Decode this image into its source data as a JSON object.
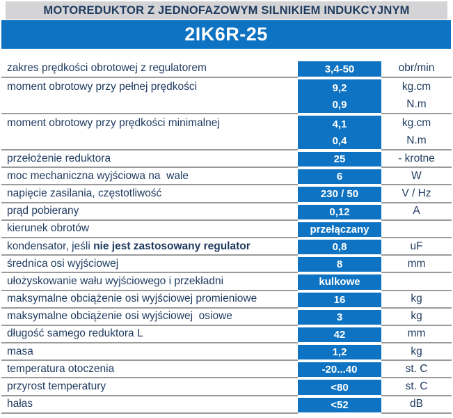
{
  "header": {
    "title": "MOTOREDUKTOR Z JEDNOFAZOWYM SILNIKIEM INDUKCYJNYM",
    "model": "2IK6R-25"
  },
  "colors": {
    "blue": "#0d73c2",
    "navy": "#1e3a5f",
    "strip": "#d4d4d6",
    "line": "#9a9a9a"
  },
  "table": {
    "rows": [
      {
        "label": "zakres prędkości obrotowej z regulatorem",
        "value": "3,4-50",
        "unit": "obr/min"
      },
      {
        "label": "moment obrotowy przy pełnej prędkości",
        "values": [
          "9,2",
          "0,9"
        ],
        "units": [
          "kg.cm",
          "N.m"
        ]
      },
      {
        "label": "moment obrotowy przy prędkości minimalnej",
        "values": [
          "4,1",
          "0,4"
        ],
        "units": [
          "kg.cm",
          "N.m"
        ]
      },
      {
        "label": "przełożenie reduktora",
        "value": "25",
        "unit": "- krotne"
      },
      {
        "label": "moc mechaniczna wyjściowa na  wale",
        "value": "6",
        "unit": "W"
      },
      {
        "label": "napięcie zasilania, częstotliwość",
        "value": "230 / 50",
        "unit": "V / Hz"
      },
      {
        "label": "prąd pobierany",
        "value": "0,12",
        "unit": "A"
      },
      {
        "label": "kierunek obrotów",
        "value": "przełączany",
        "unit": ""
      },
      {
        "label": "kondensator, jeśli ",
        "label_bold": "nie jest zastosowany regulator",
        "value": "0,8",
        "unit": "uF"
      },
      {
        "label": "średnica osi wyjściowej",
        "value": "8",
        "unit": "mm"
      },
      {
        "label": "ułożyskowanie wału wyjściowego i przekładni",
        "value": "kulkowe",
        "unit": ""
      },
      {
        "label": "maksymalne obciążenie osi wyjściowej promieniowe",
        "value": "16",
        "unit": "kg"
      },
      {
        "label": "maksymalne obciążenie osi wyjściowej  osiowe",
        "value": "3",
        "unit": "kg"
      },
      {
        "label": "długość samego reduktora L",
        "value": "42",
        "unit": "mm"
      },
      {
        "label": "masa",
        "value": "1,2",
        "unit": "kg"
      },
      {
        "label": "temperatura otoczenia",
        "value": "-20...40",
        "unit": "st. C"
      },
      {
        "label": "przyrost temperatury",
        "value": "<80",
        "unit": "st. C"
      },
      {
        "label": "hałas",
        "value": "<52",
        "unit": "dB"
      }
    ]
  }
}
